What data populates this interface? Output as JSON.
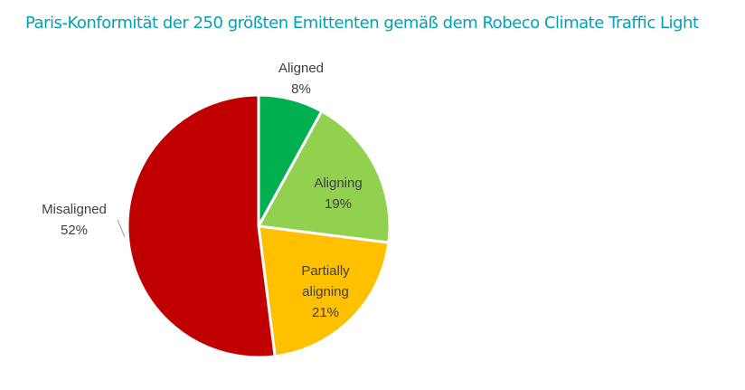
{
  "chart_data": {
    "type": "pie",
    "title": "Paris-Konformität der 250 größten Emittenten gemäß dem Robeco Climate Traffic Light",
    "categories": [
      "Aligned",
      "Aligning",
      "Partially aligning",
      "Misaligned"
    ],
    "values": [
      8,
      19,
      21,
      52
    ],
    "value_labels": [
      "8%",
      "19%",
      "21%",
      "52%"
    ],
    "colors": [
      "#00b050",
      "#92d050",
      "#ffc000",
      "#c00000"
    ]
  }
}
